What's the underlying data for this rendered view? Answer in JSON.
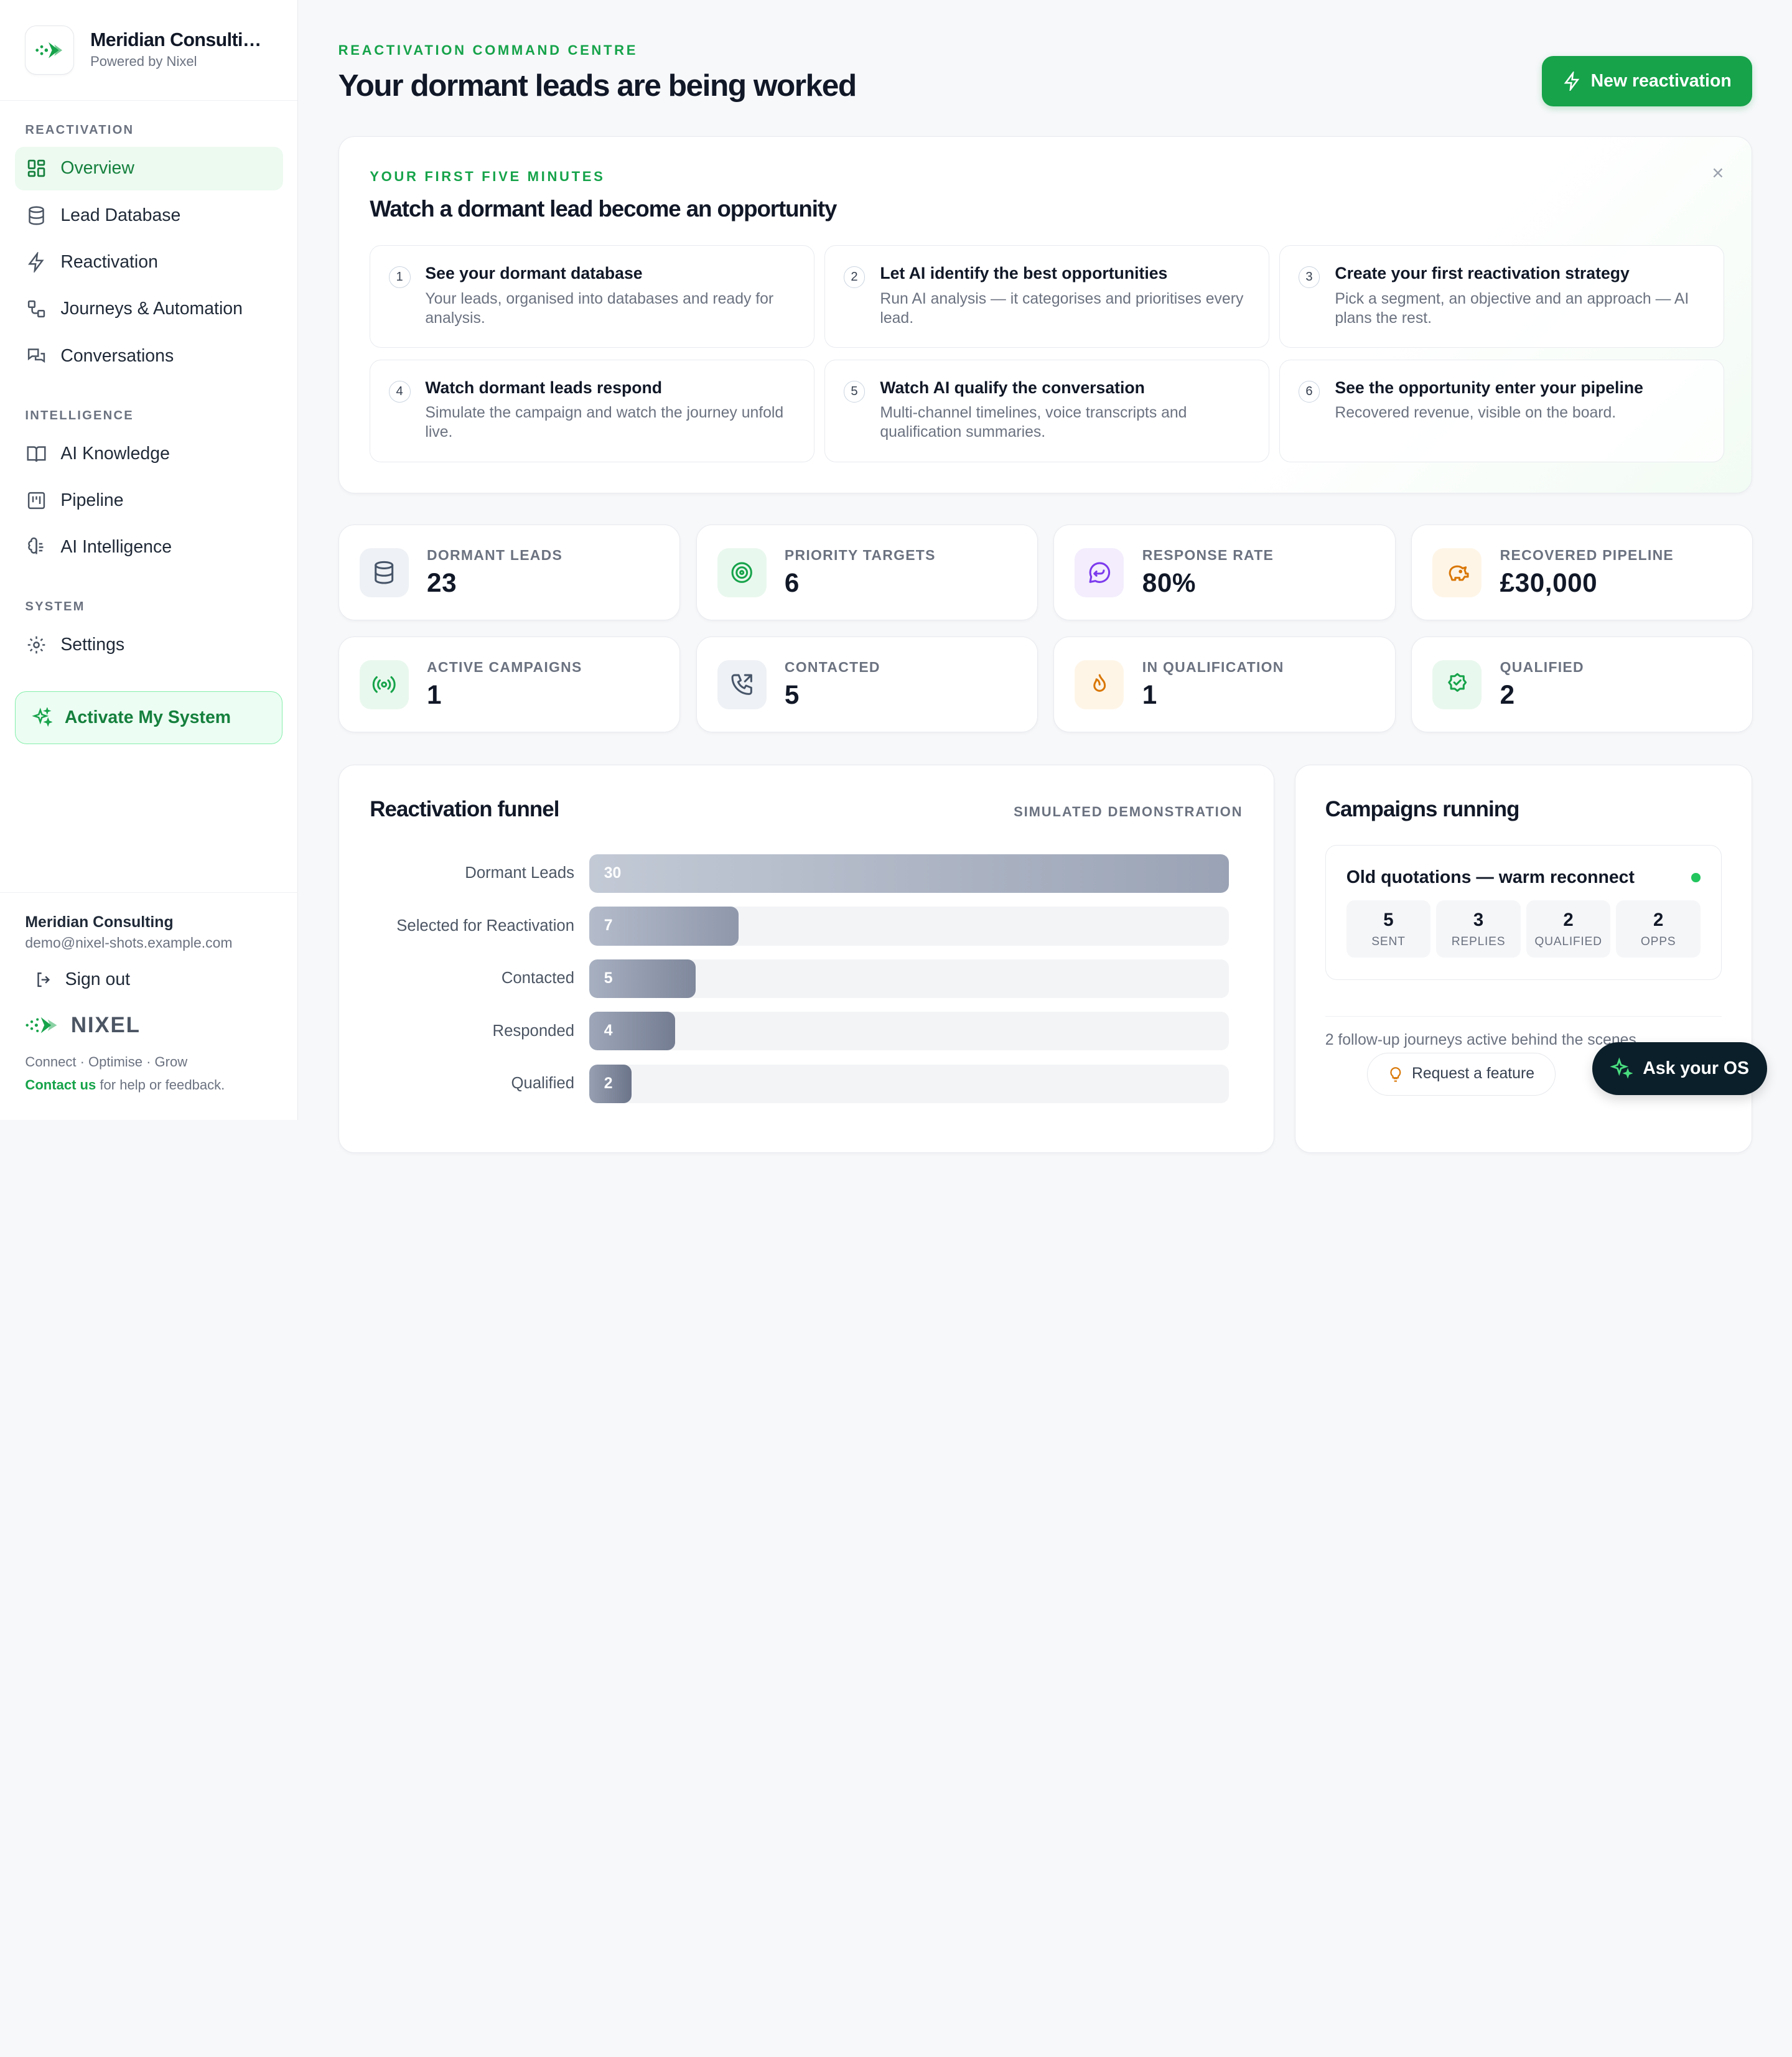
{
  "brand": {
    "name": "Meridian Consultin…",
    "sub": "Powered by Nixel"
  },
  "nav": {
    "sections": [
      {
        "title": "REACTIVATION"
      },
      {
        "title": "INTELLIGENCE"
      },
      {
        "title": "SYSTEM"
      }
    ],
    "items": [
      {
        "label": "Overview",
        "icon": "dashboard-icon"
      },
      {
        "label": "Lead Database",
        "icon": "database-icon"
      },
      {
        "label": "Reactivation",
        "icon": "bolt-icon"
      },
      {
        "label": "Journeys & Automation",
        "icon": "workflow-icon"
      },
      {
        "label": "Conversations",
        "icon": "chat-icon"
      },
      {
        "label": "AI Knowledge",
        "icon": "book-icon"
      },
      {
        "label": "Pipeline",
        "icon": "kanban-icon"
      },
      {
        "label": "AI Intelligence",
        "icon": "brain-icon"
      },
      {
        "label": "Settings",
        "icon": "gear-icon"
      }
    ],
    "activate_label": "Activate My System"
  },
  "footer": {
    "account_name": "Meridian Consulting",
    "account_email": "demo@nixel-shots.example.com",
    "signout": "Sign out",
    "logo_text": "NIXEL",
    "tagline": "Connect · Optimise · Grow",
    "contact_link": "Contact us",
    "contact_rest": " for help or feedback."
  },
  "header": {
    "eyebrow": "REACTIVATION COMMAND CENTRE",
    "title": "Your dormant leads are being worked",
    "new_button": "New reactivation"
  },
  "onboarding": {
    "eyebrow": "YOUR FIRST FIVE MINUTES",
    "title": "Watch a dormant lead become an opportunity",
    "close": "×",
    "steps": [
      {
        "num": "1",
        "title": "See your dormant database",
        "desc": "Your leads, organised into databases and ready for analysis."
      },
      {
        "num": "2",
        "title": "Let AI identify the best opportunities",
        "desc": "Run AI analysis — it categorises and prioritises every lead."
      },
      {
        "num": "3",
        "title": "Create your first reactivation strategy",
        "desc": "Pick a segment, an objective and an approach — AI plans the rest."
      },
      {
        "num": "4",
        "title": "Watch dormant leads respond",
        "desc": "Simulate the campaign and watch the journey unfold live."
      },
      {
        "num": "5",
        "title": "Watch AI qualify the conversation",
        "desc": "Multi-channel timelines, voice transcripts and qualification summaries."
      },
      {
        "num": "6",
        "title": "See the opportunity enter your pipeline",
        "desc": "Recovered revenue, visible on the board."
      }
    ]
  },
  "stats": [
    {
      "label": "DORMANT LEADS",
      "value": "23",
      "icon": "database-icon",
      "color": "#475569",
      "bg": "#eef1f5"
    },
    {
      "label": "PRIORITY TARGETS",
      "value": "6",
      "icon": "target-icon",
      "color": "#16a34a",
      "bg": "#e9f8ee"
    },
    {
      "label": "RESPONSE RATE",
      "value": "80%",
      "icon": "message-reply-icon",
      "color": "#7c3aed",
      "bg": "#f3edfd"
    },
    {
      "label": "RECOVERED PIPELINE",
      "value": "£30,000",
      "icon": "piggy-bank-icon",
      "color": "#d97706",
      "bg": "#fef5e7"
    },
    {
      "label": "ACTIVE CAMPAIGNS",
      "value": "1",
      "icon": "broadcast-icon",
      "color": "#16a34a",
      "bg": "#e9f8ee"
    },
    {
      "label": "CONTACTED",
      "value": "5",
      "icon": "phone-outgoing-icon",
      "color": "#475569",
      "bg": "#eef1f5"
    },
    {
      "label": "IN QUALIFICATION",
      "value": "1",
      "icon": "flame-icon",
      "color": "#d97706",
      "bg": "#fef5e7"
    },
    {
      "label": "QUALIFIED",
      "value": "2",
      "icon": "check-badge-icon",
      "color": "#16a34a",
      "bg": "#e9f8ee"
    }
  ],
  "funnel": {
    "title": "Reactivation funnel",
    "badge": "SIMULATED DEMONSTRATION",
    "max": 30,
    "rows": [
      {
        "label": "Dormant Leads",
        "value": 30,
        "display": "30"
      },
      {
        "label": "Selected for Reactivation",
        "value": 7,
        "display": "7"
      },
      {
        "label": "Contacted",
        "value": 5,
        "display": "5"
      },
      {
        "label": "Responded",
        "value": 4,
        "display": "4"
      },
      {
        "label": "Qualified",
        "value": 2,
        "display": "2"
      }
    ]
  },
  "campaigns": {
    "title": "Campaigns running",
    "card_title": "Old quotations — warm reconnect",
    "stats": [
      {
        "value": "5",
        "label": "SENT"
      },
      {
        "value": "3",
        "label": "REPLIES"
      },
      {
        "value": "2",
        "label": "QUALIFIED"
      },
      {
        "value": "2",
        "label": "OPPS"
      }
    ],
    "note": "2 follow-up journeys active behind the scenes."
  },
  "floating": {
    "request": "Request a feature",
    "ask": "Ask your OS"
  },
  "colors": {
    "accent": "#16a34a",
    "dark": "#0b1f2a"
  }
}
